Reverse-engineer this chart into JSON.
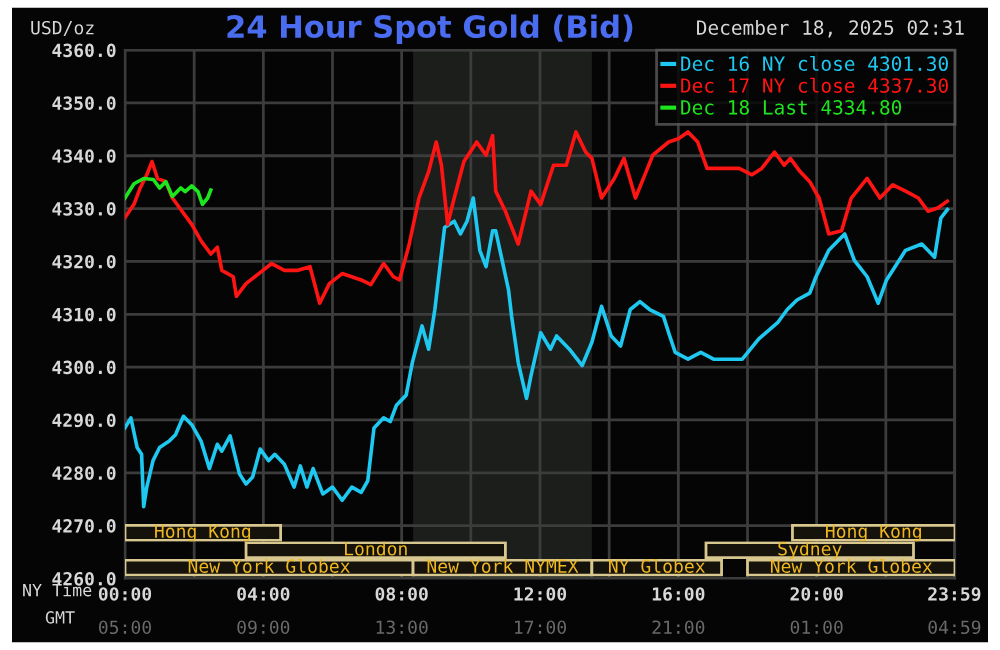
{
  "chart_data": [
    {
      "type": "line",
      "title": "24 Hour Spot Gold (Bid)",
      "subtitle": "December 18, 2025 02:31",
      "ylabel": "USD/oz",
      "xlabel": "NY Time",
      "x2label": "GMT",
      "xlim": [
        0,
        24
      ],
      "xticks": [
        {
          "value": 0,
          "label": "00:00"
        },
        {
          "value": 2,
          "label": null
        },
        {
          "value": 4,
          "label": "04:00"
        },
        {
          "value": 6,
          "label": null
        },
        {
          "value": 8,
          "label": "08:00"
        },
        {
          "value": 10,
          "label": null
        },
        {
          "value": 12,
          "label": "12:00"
        },
        {
          "value": 14,
          "label": null
        },
        {
          "value": 16,
          "label": "16:00"
        },
        {
          "value": 18,
          "label": null
        },
        {
          "value": 20,
          "label": "20:00"
        },
        {
          "value": 22,
          "label": null
        },
        {
          "value": 23.983,
          "label": "23:59"
        }
      ],
      "x2lim": [
        "2025-12-18T05:00",
        "2025-12-19T05:00"
      ],
      "x2ticks": [
        {
          "value": "2025-12-18T05:00",
          "label": "05:00"
        },
        {
          "value": "2025-12-18T09:00",
          "label": "09:00"
        },
        {
          "value": "2025-12-18T13:00",
          "label": "13:00"
        },
        {
          "value": "2025-12-18T17:00",
          "label": "17:00"
        },
        {
          "value": "2025-12-18T21:00",
          "label": "21:00"
        },
        {
          "value": "2025-12-19T01:00",
          "label": "01:00"
        },
        {
          "value": "2025-12-19T04:59",
          "label": "04:59"
        }
      ],
      "ylim": [
        4260,
        4360
      ],
      "yticks": [
        {
          "value": 4260,
          "label": "4260.0"
        },
        {
          "value": 4270,
          "label": "4270.0"
        },
        {
          "value": 4280,
          "label": "4280.0"
        },
        {
          "value": 4290,
          "label": "4290.0"
        },
        {
          "value": 4300,
          "label": "4300.0"
        },
        {
          "value": 4310,
          "label": "4310.0"
        },
        {
          "value": 4320,
          "label": "4320.0"
        },
        {
          "value": 4330,
          "label": "4330.0"
        },
        {
          "value": 4340,
          "label": "4340.0"
        },
        {
          "value": 4350,
          "label": "4350.0"
        },
        {
          "value": 4360,
          "label": "4360.0"
        }
      ],
      "grid": true,
      "legend": "top right",
      "line_style": "solid",
      "series": [
        {
          "name": "Dec 16 NY close 4301.30",
          "color": "#1ec8f0",
          "x": [
            0,
            0.17,
            0.35,
            0.48,
            0.54,
            0.63,
            0.81,
            1.0,
            1.28,
            1.46,
            1.69,
            1.93,
            2.2,
            2.44,
            2.67,
            2.8,
            3.04,
            3.31,
            3.5,
            3.69,
            3.91,
            4.15,
            4.33,
            4.61,
            4.89,
            5.07,
            5.26,
            5.44,
            5.72,
            6.0,
            6.28,
            6.56,
            6.83,
            7.02,
            7.2,
            7.48,
            7.67,
            7.85,
            8.13,
            8.31,
            8.59,
            8.78,
            8.96,
            9.24,
            9.52,
            9.7,
            9.89,
            10.07,
            10.26,
            10.44,
            10.63,
            10.72,
            11.09,
            11.18,
            11.37,
            11.61,
            11.74,
            12.02,
            12.3,
            12.48,
            12.85,
            13.22,
            13.5,
            13.78,
            14.06,
            14.33,
            14.61,
            14.89,
            15.17,
            15.57,
            15.72,
            15.91,
            16.28,
            16.65,
            17.02,
            17.85,
            18.32,
            18.87,
            19.15,
            19.43,
            19.8,
            19.98,
            20.35,
            20.81,
            21.09,
            21.46,
            21.78,
            22.02,
            22.57,
            23.04,
            23.41,
            23.59,
            23.78
          ],
          "values": [
            4288.5,
            4290.4,
            4284.8,
            4283.5,
            4273.6,
            4277.3,
            4282.3,
            4284.8,
            4286.0,
            4287.2,
            4290.7,
            4289.1,
            4286.0,
            4280.8,
            4285.4,
            4284.1,
            4287.0,
            4279.8,
            4277.9,
            4279.2,
            4284.5,
            4282.3,
            4283.5,
            4281.6,
            4277.3,
            4281.3,
            4277.3,
            4280.8,
            4276.0,
            4277.3,
            4274.8,
            4277.3,
            4276.3,
            4278.5,
            4288.5,
            4290.4,
            4289.7,
            4292.8,
            4294.7,
            4300.9,
            4307.8,
            4303.4,
            4310.9,
            4326.4,
            4327.6,
            4325.2,
            4327.6,
            4332.0,
            4322.1,
            4319.0,
            4325.8,
            4325.8,
            4314.6,
            4309.6,
            4300.9,
            4294.1,
            4298.4,
            4306.5,
            4303.4,
            4305.9,
            4303.4,
            4300.3,
            4304.7,
            4311.5,
            4305.9,
            4304.0,
            4310.9,
            4312.4,
            4310.9,
            4309.6,
            4306.5,
            4302.8,
            4301.5,
            4302.8,
            4301.5,
            4301.5,
            4305.3,
            4308.4,
            4310.9,
            4312.7,
            4314.0,
            4317.1,
            4322.1,
            4325.2,
            4320.2,
            4317.1,
            4312.1,
            4316.5,
            4322.1,
            4323.3,
            4320.8,
            4328.2,
            4329.8
          ]
        },
        {
          "name": "Dec 17 NY close 4337.30",
          "color": "#ff1414",
          "x": [
            0,
            0.26,
            0.44,
            0.63,
            0.78,
            0.94,
            1.18,
            1.37,
            1.65,
            1.93,
            2.2,
            2.48,
            2.67,
            2.8,
            3.13,
            3.22,
            3.5,
            3.87,
            4.24,
            4.61,
            4.98,
            5.35,
            5.63,
            5.91,
            6.28,
            6.83,
            7.11,
            7.48,
            7.76,
            7.94,
            8.22,
            8.5,
            8.78,
            9.0,
            9.15,
            9.33,
            9.52,
            9.8,
            10.17,
            10.44,
            10.63,
            10.72,
            11.0,
            11.37,
            11.74,
            12.02,
            12.39,
            12.76,
            13.04,
            13.32,
            13.5,
            13.78,
            14.15,
            14.43,
            14.76,
            15.07,
            15.26,
            15.72,
            16.0,
            16.28,
            16.56,
            16.83,
            17.76,
            18.13,
            18.41,
            18.78,
            19.06,
            19.24,
            19.52,
            19.8,
            20.07,
            20.35,
            20.72,
            21.0,
            21.46,
            21.83,
            22.2,
            22.57,
            22.94,
            23.22,
            23.5,
            23.78
          ],
          "values": [
            4328.3,
            4330.8,
            4333.9,
            4336.4,
            4338.9,
            4335.7,
            4335.1,
            4332.0,
            4329.5,
            4327.0,
            4323.9,
            4321.4,
            4322.7,
            4318.3,
            4317.1,
            4313.4,
            4315.8,
            4317.7,
            4319.6,
            4318.3,
            4318.3,
            4319.0,
            4312.1,
            4315.8,
            4317.7,
            4316.5,
            4315.6,
            4319.6,
            4317.1,
            4316.5,
            4323.3,
            4332.0,
            4337.0,
            4342.6,
            4338.2,
            4327.0,
            4332.0,
            4338.9,
            4342.6,
            4340.1,
            4343.8,
            4333.3,
            4329.5,
            4323.3,
            4333.3,
            4330.8,
            4338.2,
            4338.2,
            4344.5,
            4340.7,
            4339.5,
            4332.0,
            4335.7,
            4339.5,
            4332.0,
            4337.0,
            4340.1,
            4342.6,
            4343.2,
            4344.5,
            4342.6,
            4337.6,
            4337.6,
            4336.4,
            4337.6,
            4340.7,
            4338.2,
            4339.5,
            4337.0,
            4335.1,
            4332.0,
            4325.2,
            4325.8,
            4332.0,
            4335.7,
            4332.0,
            4334.5,
            4333.3,
            4332.0,
            4329.5,
            4330.1,
            4331.4
          ]
        },
        {
          "name": "Dec 18 Last 4334.80",
          "color": "#1ee61e",
          "x": [
            0,
            0.26,
            0.54,
            0.82,
            1.0,
            1.18,
            1.37,
            1.61,
            1.74,
            1.93,
            2.11,
            2.24,
            2.39,
            2.48
          ],
          "values": [
            4332.0,
            4334.7,
            4335.7,
            4335.5,
            4333.9,
            4335.1,
            4332.3,
            4333.9,
            4333.2,
            4334.3,
            4333.2,
            4330.8,
            4332.0,
            4333.5
          ]
        }
      ],
      "bands": [
        {
          "axis": "x",
          "from": 8.33,
          "to": 13.5,
          "color": "#1b1e1b"
        }
      ]
    },
    {
      "type": "bar",
      "orientation": "horizontal",
      "categories": [
        null
      ],
      "xlim": [
        0,
        24
      ],
      "tick_labels": false,
      "series": [
        {
          "name": "Hong Kong",
          "color": "#14120a",
          "values": [
            4.5
          ],
          "base": [
            0
          ]
        },
        {
          "name": "Hong Kong",
          "color": "#14120a",
          "values": [
            4.7
          ],
          "base": [
            19.3
          ]
        }
      ]
    },
    {
      "type": "bar",
      "orientation": "horizontal",
      "categories": [
        null
      ],
      "xlim": [
        0,
        24
      ],
      "tick_labels": false,
      "series": [
        {
          "name": "London",
          "color": "#14120a",
          "values": [
            7.5
          ],
          "base": [
            3.5
          ]
        },
        {
          "name": "Sydney",
          "color": "#14120a",
          "values": [
            6.0
          ],
          "base": [
            16.8
          ]
        }
      ]
    },
    {
      "type": "bar",
      "orientation": "horizontal",
      "categories": [
        null
      ],
      "xlim": [
        0,
        24
      ],
      "tick_labels": false,
      "series": [
        {
          "name": "New York Globex",
          "color": "#14120a",
          "values": [
            8.33
          ],
          "base": [
            0
          ]
        },
        {
          "name": "New York NYMEX",
          "color": "#14120a",
          "values": [
            5.17
          ],
          "base": [
            8.33
          ]
        },
        {
          "name": "NY Globex",
          "color": "#14120a",
          "values": [
            3.75
          ],
          "base": [
            13.5
          ]
        },
        {
          "name": "New York Globex",
          "color": "#14120a",
          "values": [
            6.0
          ],
          "base": [
            18
          ]
        }
      ]
    }
  ]
}
